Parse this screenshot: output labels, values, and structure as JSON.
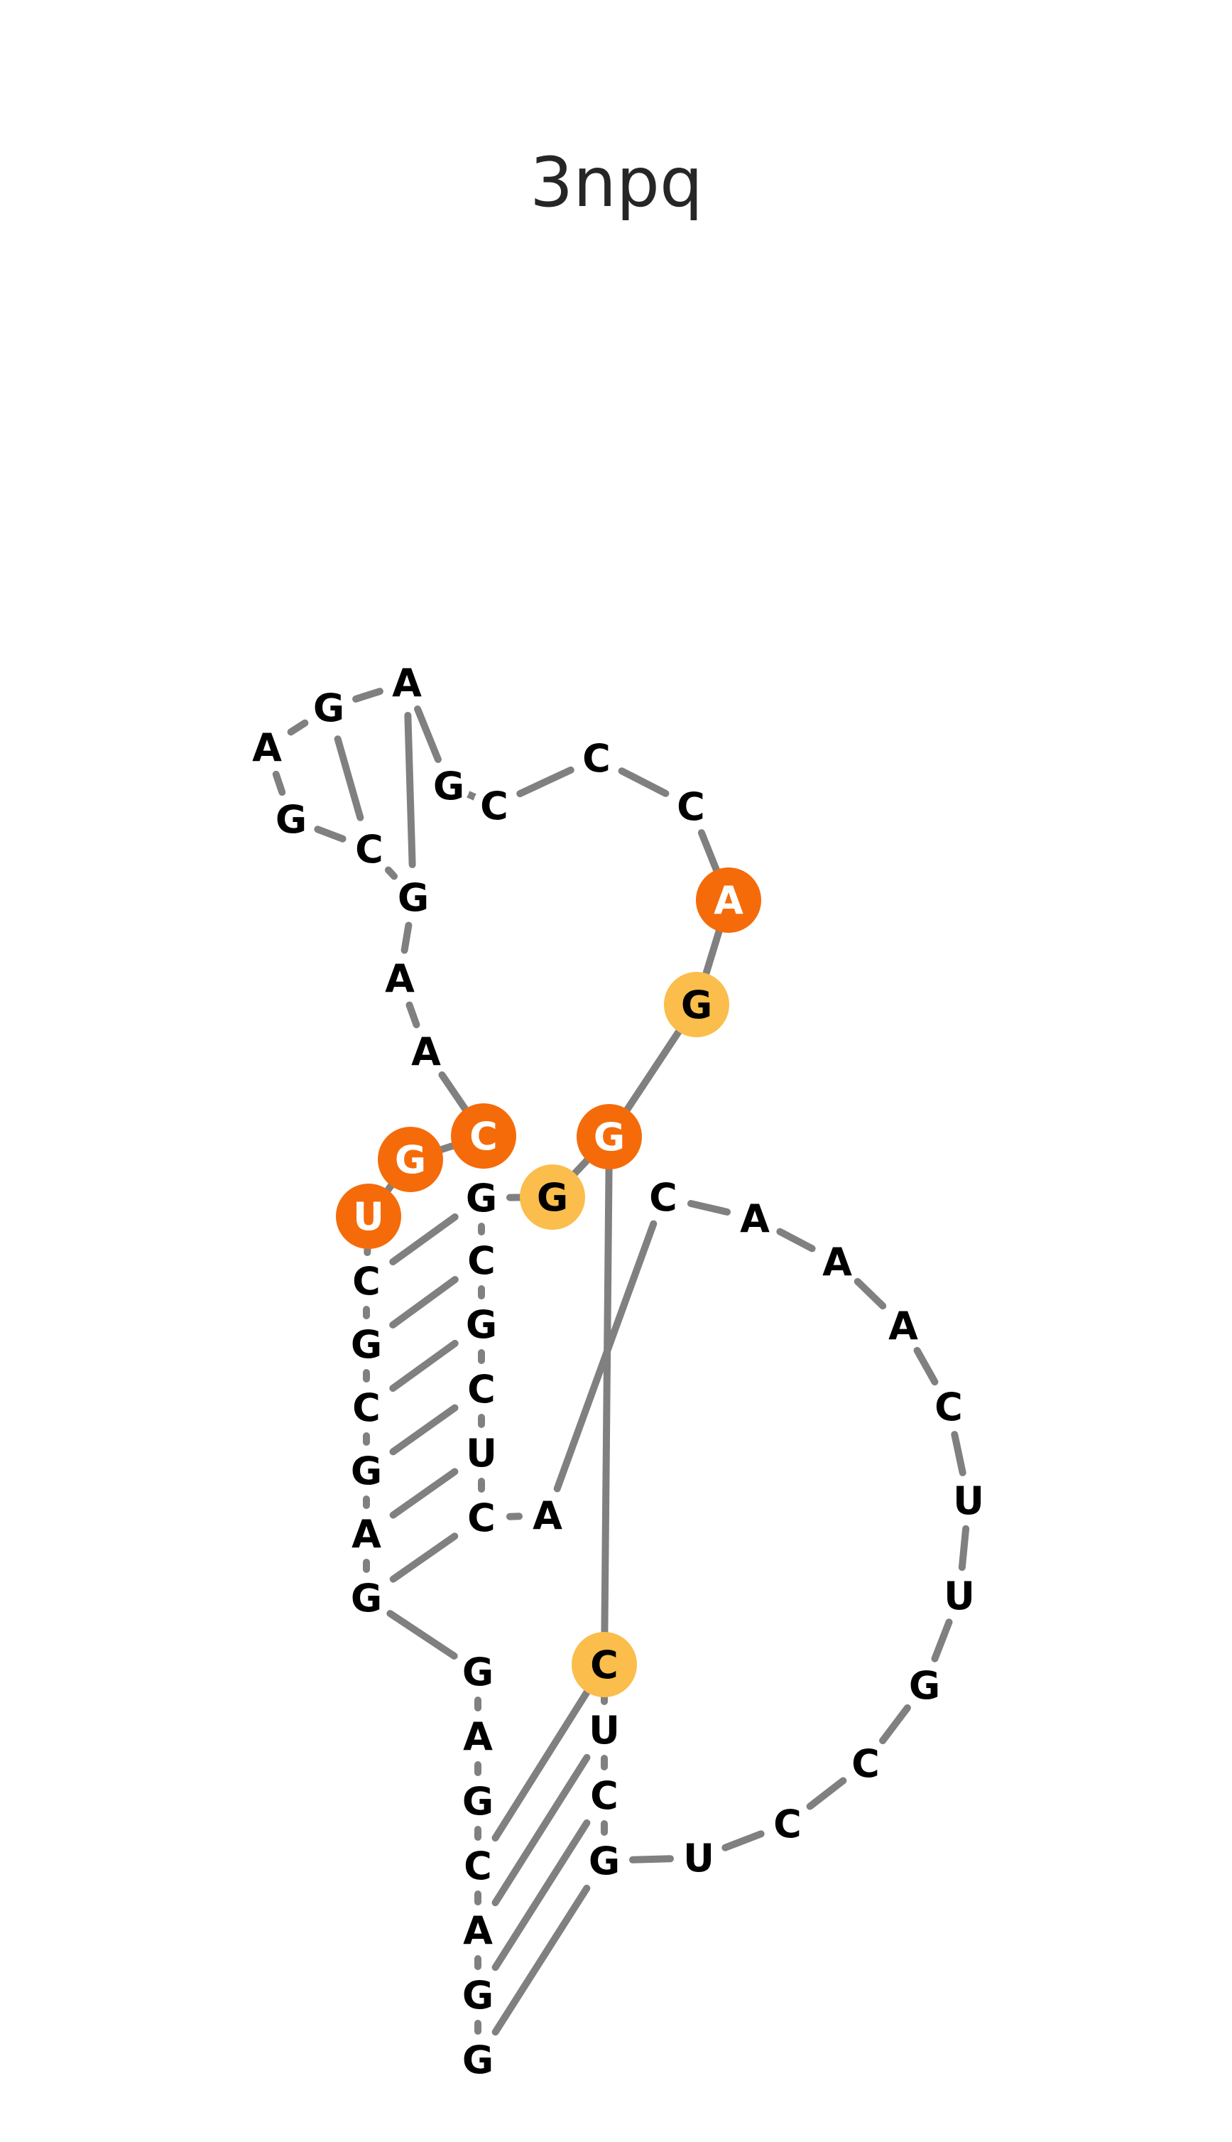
{
  "title": "3npq",
  "colors": {
    "bond": "#808080",
    "text": "#000000",
    "highlight_strong": "#f56b0a",
    "highlight_light": "#fbbd4b",
    "highlight_text_strong": "#ffffff",
    "highlight_text_light": "#000000"
  },
  "nucleotides": [
    {
      "id": 1,
      "base": "G",
      "highlight": null
    },
    {
      "id": 2,
      "base": "G",
      "highlight": null
    },
    {
      "id": 3,
      "base": "A",
      "highlight": null
    },
    {
      "id": 4,
      "base": "C",
      "highlight": null
    },
    {
      "id": 5,
      "base": "G",
      "highlight": null
    },
    {
      "id": 6,
      "base": "A",
      "highlight": null
    },
    {
      "id": 7,
      "base": "G",
      "highlight": null
    },
    {
      "id": 8,
      "base": "G",
      "highlight": null
    },
    {
      "id": 9,
      "base": "A",
      "highlight": null
    },
    {
      "id": 10,
      "base": "G",
      "highlight": null
    },
    {
      "id": 11,
      "base": "C",
      "highlight": null
    },
    {
      "id": 12,
      "base": "G",
      "highlight": null
    },
    {
      "id": 13,
      "base": "C",
      "highlight": null
    },
    {
      "id": 14,
      "base": "U",
      "highlight": "strong"
    },
    {
      "id": 15,
      "base": "G",
      "highlight": "strong"
    },
    {
      "id": 16,
      "base": "C",
      "highlight": "strong"
    },
    {
      "id": 17,
      "base": "A",
      "highlight": null
    },
    {
      "id": 18,
      "base": "A",
      "highlight": null
    },
    {
      "id": 19,
      "base": "G",
      "highlight": null
    },
    {
      "id": 20,
      "base": "C",
      "highlight": null
    },
    {
      "id": 21,
      "base": "G",
      "highlight": null
    },
    {
      "id": 22,
      "base": "A",
      "highlight": null
    },
    {
      "id": 23,
      "base": "G",
      "highlight": null
    },
    {
      "id": 24,
      "base": "A",
      "highlight": null
    },
    {
      "id": 25,
      "base": "G",
      "highlight": null
    },
    {
      "id": 26,
      "base": "C",
      "highlight": null
    },
    {
      "id": 27,
      "base": "C",
      "highlight": null
    },
    {
      "id": 28,
      "base": "C",
      "highlight": null
    },
    {
      "id": 29,
      "base": "A",
      "highlight": "strong"
    },
    {
      "id": 30,
      "base": "G",
      "highlight": "light"
    },
    {
      "id": 31,
      "base": "G",
      "highlight": "strong"
    },
    {
      "id": 32,
      "base": "G",
      "highlight": "light"
    },
    {
      "id": 33,
      "base": "G",
      "highlight": null
    },
    {
      "id": 34,
      "base": "C",
      "highlight": null
    },
    {
      "id": 35,
      "base": "G",
      "highlight": null
    },
    {
      "id": 36,
      "base": "C",
      "highlight": null
    },
    {
      "id": 37,
      "base": "U",
      "highlight": null
    },
    {
      "id": 38,
      "base": "C",
      "highlight": null
    },
    {
      "id": 39,
      "base": "A",
      "highlight": null
    },
    {
      "id": 40,
      "base": "C",
      "highlight": null
    },
    {
      "id": 41,
      "base": "A",
      "highlight": null
    },
    {
      "id": 42,
      "base": "A",
      "highlight": null
    },
    {
      "id": 43,
      "base": "A",
      "highlight": null
    },
    {
      "id": 44,
      "base": "C",
      "highlight": null
    },
    {
      "id": 45,
      "base": "U",
      "highlight": null
    },
    {
      "id": 46,
      "base": "U",
      "highlight": null
    },
    {
      "id": 47,
      "base": "G",
      "highlight": null
    },
    {
      "id": 48,
      "base": "C",
      "highlight": null
    },
    {
      "id": 49,
      "base": "C",
      "highlight": null
    },
    {
      "id": 50,
      "base": "U",
      "highlight": null
    },
    {
      "id": 51,
      "base": "G",
      "highlight": null
    },
    {
      "id": 52,
      "base": "C",
      "highlight": null
    },
    {
      "id": 53,
      "base": "U",
      "highlight": null
    },
    {
      "id": 54,
      "base": "C",
      "highlight": "light"
    }
  ],
  "base_pairs": [
    [
      1,
      51
    ],
    [
      2,
      52
    ],
    [
      3,
      53
    ],
    [
      4,
      54
    ],
    [
      8,
      38
    ],
    [
      9,
      37
    ],
    [
      10,
      36
    ],
    [
      11,
      35
    ],
    [
      12,
      34
    ],
    [
      13,
      33
    ],
    [
      19,
      24
    ],
    [
      20,
      23
    ],
    [
      31,
      54
    ]
  ]
}
